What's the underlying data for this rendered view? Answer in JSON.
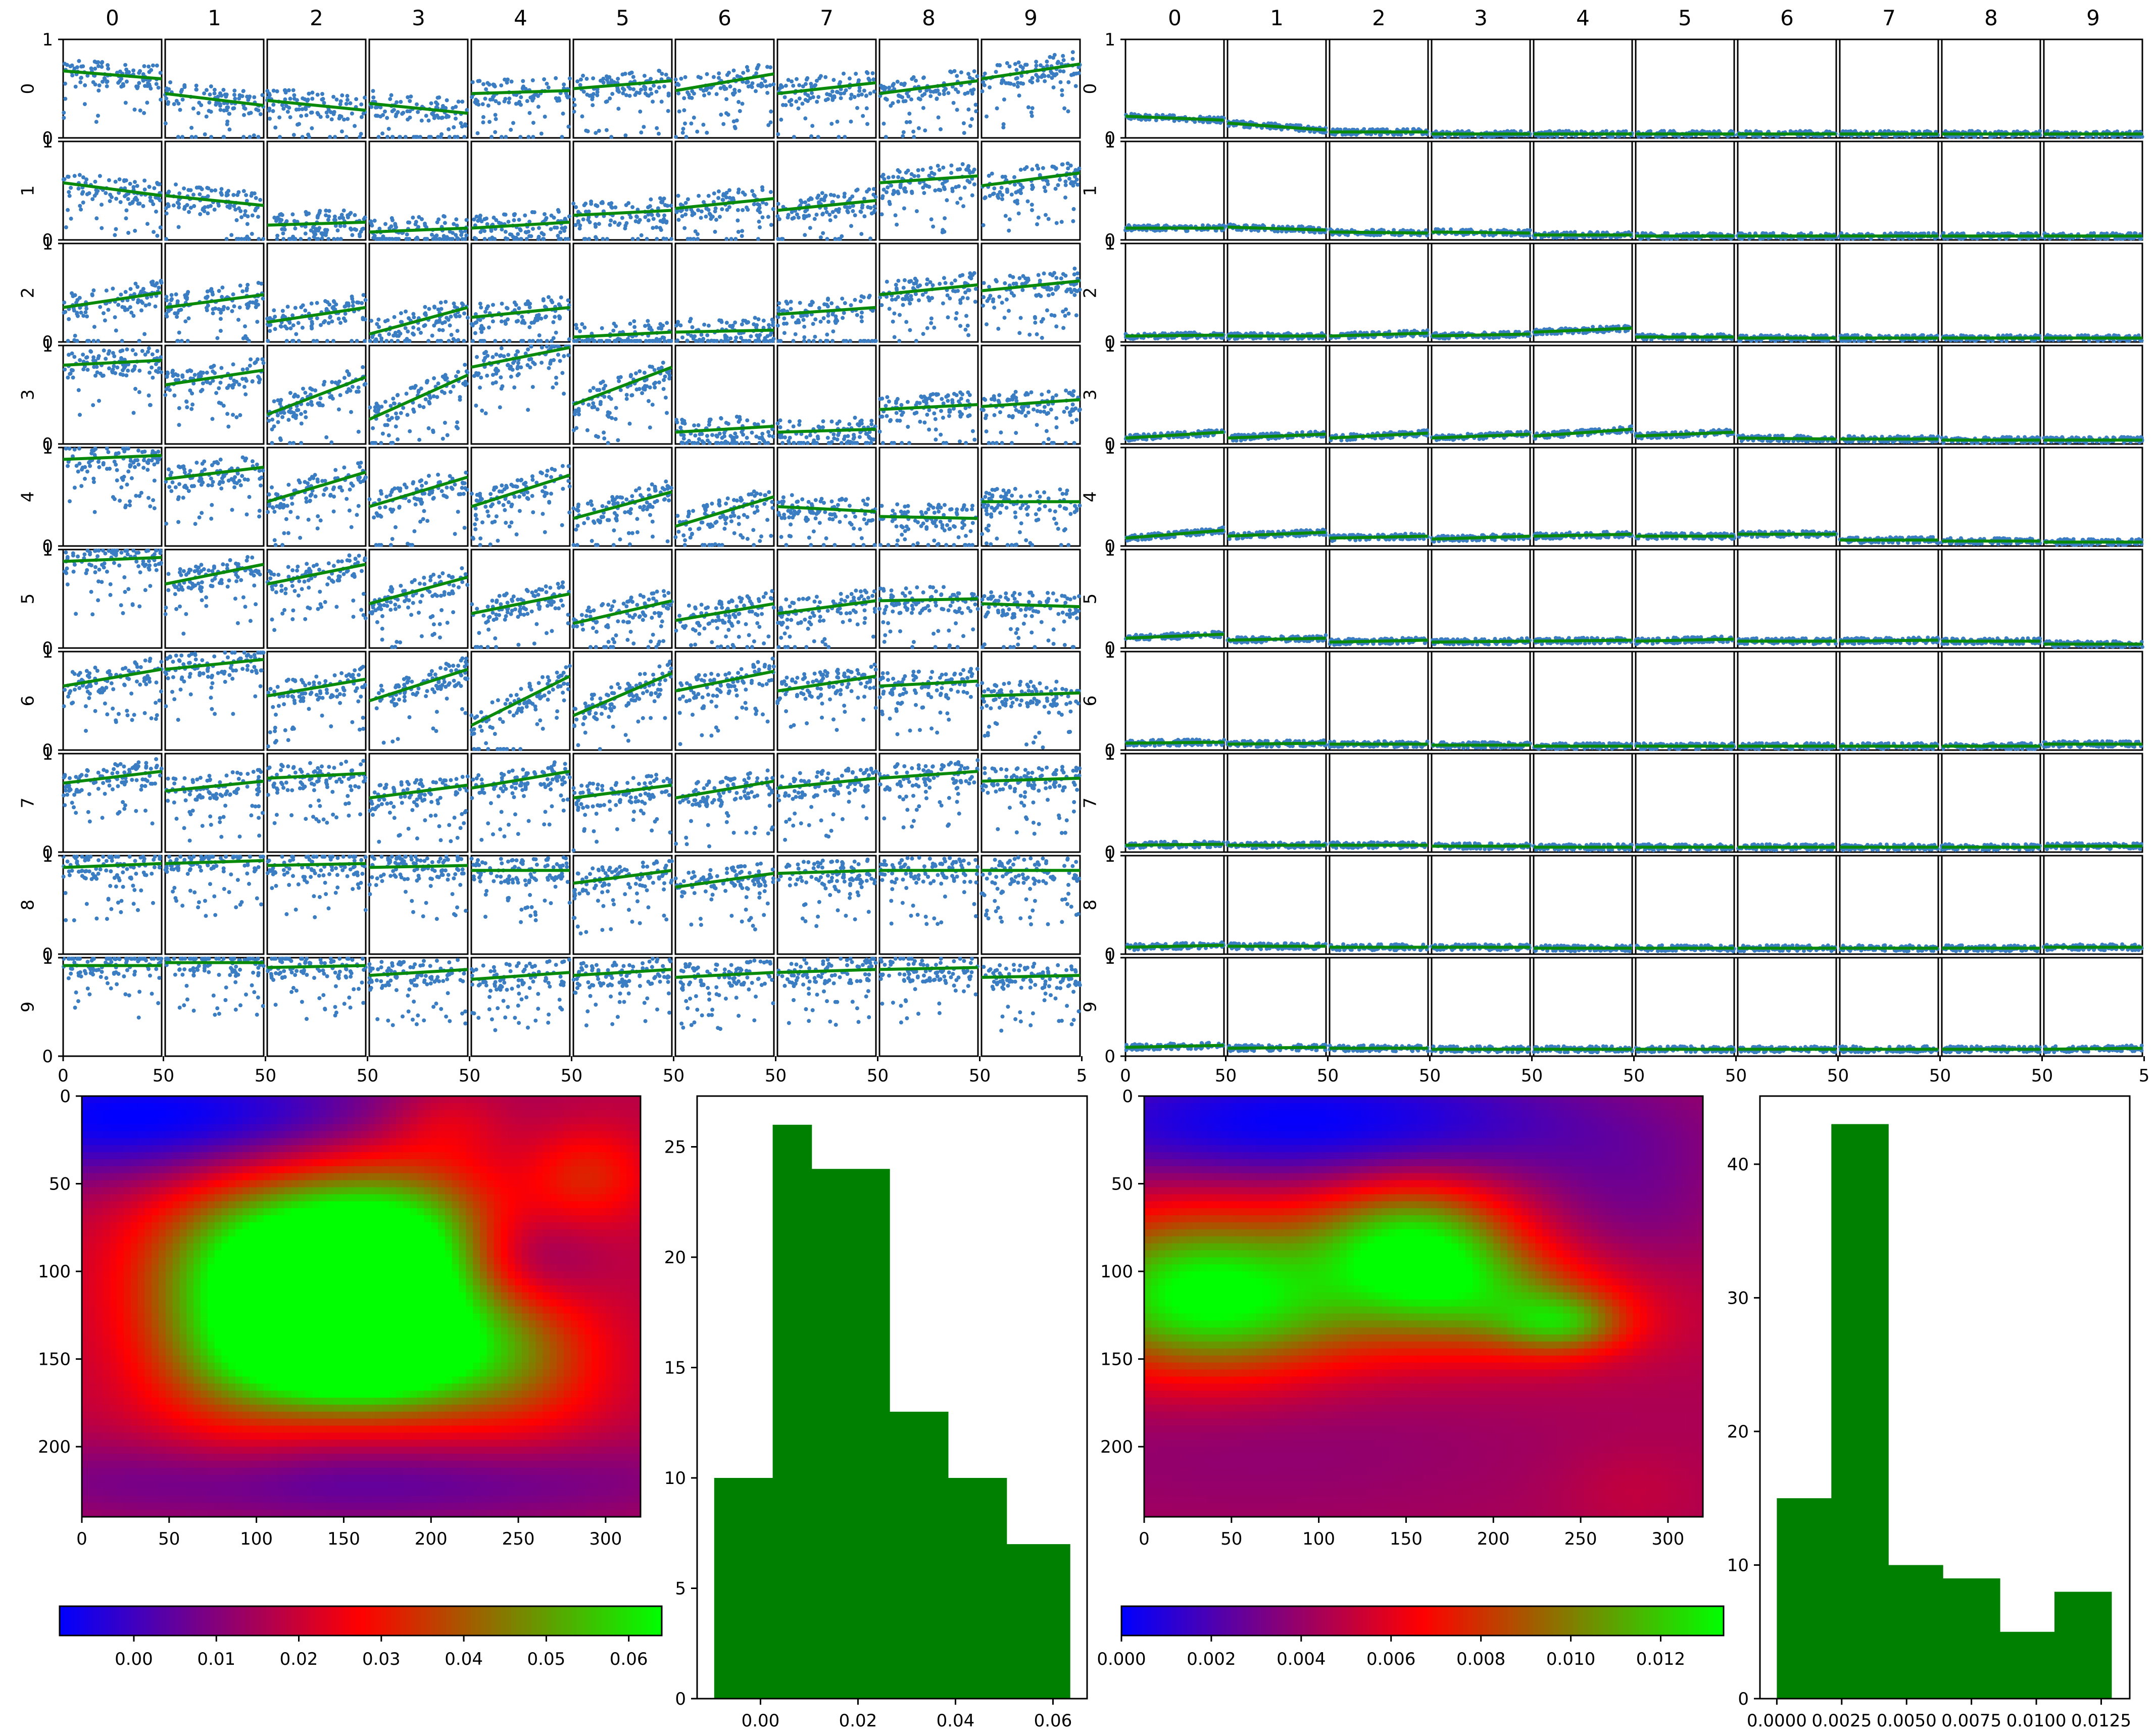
{
  "colors": {
    "scatter_point": "#3a7dc2",
    "fit_line": "#0a8a0a",
    "histogram_bar": "#008000",
    "colormap": [
      "#0000ff",
      "#ff0000",
      "#00ff00"
    ],
    "frame": "#000000"
  },
  "chart_data": [
    {
      "type": "scatter",
      "title": "",
      "xlabel": "",
      "ylabel": "",
      "col_labels": [
        "0",
        "1",
        "2",
        "3",
        "4",
        "5",
        "6",
        "7",
        "8",
        "9"
      ],
      "row_labels": [
        "0",
        "1",
        "2",
        "3",
        "4",
        "5",
        "6",
        "7",
        "8",
        "9"
      ],
      "x_tick_labels": [
        "0",
        "50",
        "50",
        "50",
        "50",
        "50",
        "50",
        "50",
        "50",
        "50",
        "5"
      ],
      "y_tick_labels": [
        "1",
        "0"
      ],
      "xlim": [
        0,
        50
      ],
      "ylim": [
        0,
        1
      ],
      "fit_lines": [
        [
          [
            0.68,
            0.6
          ],
          [
            0.45,
            0.33
          ],
          [
            0.38,
            0.28
          ],
          [
            0.35,
            0.25
          ],
          [
            0.45,
            0.48
          ],
          [
            0.5,
            0.58
          ],
          [
            0.48,
            0.65
          ],
          [
            0.45,
            0.56
          ],
          [
            0.45,
            0.58
          ],
          [
            0.6,
            0.75
          ]
        ],
        [
          [
            0.58,
            0.45
          ],
          [
            0.45,
            0.35
          ],
          [
            0.15,
            0.18
          ],
          [
            0.08,
            0.12
          ],
          [
            0.12,
            0.18
          ],
          [
            0.25,
            0.3
          ],
          [
            0.32,
            0.42
          ],
          [
            0.3,
            0.4
          ],
          [
            0.58,
            0.65
          ],
          [
            0.55,
            0.68
          ]
        ],
        [
          [
            0.35,
            0.5
          ],
          [
            0.35,
            0.48
          ],
          [
            0.2,
            0.35
          ],
          [
            0.08,
            0.35
          ],
          [
            0.25,
            0.35
          ],
          [
            0.05,
            0.1
          ],
          [
            0.1,
            0.12
          ],
          [
            0.28,
            0.35
          ],
          [
            0.48,
            0.58
          ],
          [
            0.52,
            0.62
          ]
        ],
        [
          [
            0.8,
            0.85
          ],
          [
            0.6,
            0.75
          ],
          [
            0.3,
            0.68
          ],
          [
            0.25,
            0.7
          ],
          [
            0.78,
            0.98
          ],
          [
            0.4,
            0.78
          ],
          [
            0.12,
            0.18
          ],
          [
            0.12,
            0.15
          ],
          [
            0.35,
            0.4
          ],
          [
            0.38,
            0.45
          ]
        ],
        [
          [
            0.88,
            0.92
          ],
          [
            0.68,
            0.8
          ],
          [
            0.45,
            0.75
          ],
          [
            0.4,
            0.7
          ],
          [
            0.4,
            0.72
          ],
          [
            0.28,
            0.55
          ],
          [
            0.2,
            0.5
          ],
          [
            0.4,
            0.35
          ],
          [
            0.3,
            0.28
          ],
          [
            0.45,
            0.45
          ]
        ],
        [
          [
            0.88,
            0.92
          ],
          [
            0.65,
            0.85
          ],
          [
            0.65,
            0.85
          ],
          [
            0.45,
            0.72
          ],
          [
            0.35,
            0.55
          ],
          [
            0.25,
            0.48
          ],
          [
            0.28,
            0.45
          ],
          [
            0.35,
            0.48
          ],
          [
            0.48,
            0.5
          ],
          [
            0.45,
            0.42
          ]
        ],
        [
          [
            0.65,
            0.82
          ],
          [
            0.82,
            0.92
          ],
          [
            0.55,
            0.72
          ],
          [
            0.5,
            0.82
          ],
          [
            0.25,
            0.75
          ],
          [
            0.35,
            0.78
          ],
          [
            0.6,
            0.8
          ],
          [
            0.6,
            0.75
          ],
          [
            0.65,
            0.7
          ],
          [
            0.55,
            0.58
          ]
        ],
        [
          [
            0.7,
            0.82
          ],
          [
            0.62,
            0.72
          ],
          [
            0.75,
            0.8
          ],
          [
            0.55,
            0.68
          ],
          [
            0.65,
            0.82
          ],
          [
            0.55,
            0.68
          ],
          [
            0.55,
            0.72
          ],
          [
            0.65,
            0.75
          ],
          [
            0.75,
            0.82
          ],
          [
            0.72,
            0.75
          ]
        ],
        [
          [
            0.88,
            0.92
          ],
          [
            0.92,
            0.95
          ],
          [
            0.9,
            0.92
          ],
          [
            0.88,
            0.9
          ],
          [
            0.85,
            0.85
          ],
          [
            0.72,
            0.85
          ],
          [
            0.68,
            0.82
          ],
          [
            0.82,
            0.85
          ],
          [
            0.85,
            0.85
          ],
          [
            0.85,
            0.85
          ]
        ],
        [
          [
            0.92,
            0.92
          ],
          [
            0.95,
            0.95
          ],
          [
            0.9,
            0.92
          ],
          [
            0.82,
            0.88
          ],
          [
            0.78,
            0.85
          ],
          [
            0.82,
            0.88
          ],
          [
            0.8,
            0.85
          ],
          [
            0.85,
            0.88
          ],
          [
            0.88,
            0.9
          ],
          [
            0.8,
            0.82
          ]
        ]
      ]
    },
    {
      "type": "scatter",
      "title": "",
      "xlabel": "",
      "ylabel": "",
      "col_labels": [
        "0",
        "1",
        "2",
        "3",
        "4",
        "5",
        "6",
        "7",
        "8",
        "9"
      ],
      "row_labels": [
        "0",
        "1",
        "2",
        "3",
        "4",
        "5",
        "6",
        "7",
        "8",
        "9"
      ],
      "x_tick_labels": [
        "0",
        "50",
        "50",
        "50",
        "50",
        "50",
        "50",
        "50",
        "50",
        "50",
        "5"
      ],
      "y_tick_labels": [
        "1",
        "0"
      ],
      "xlim": [
        0,
        50
      ],
      "ylim": [
        0,
        1
      ],
      "fit_lines": [
        [
          [
            0.22,
            0.18
          ],
          [
            0.15,
            0.08
          ],
          [
            0.06,
            0.06
          ],
          [
            0.04,
            0.04
          ],
          [
            0.04,
            0.04
          ],
          [
            0.04,
            0.04
          ],
          [
            0.04,
            0.04
          ],
          [
            0.04,
            0.04
          ],
          [
            0.04,
            0.04
          ],
          [
            0.04,
            0.04
          ]
        ],
        [
          [
            0.12,
            0.12
          ],
          [
            0.13,
            0.1
          ],
          [
            0.08,
            0.07
          ],
          [
            0.08,
            0.07
          ],
          [
            0.05,
            0.05
          ],
          [
            0.04,
            0.04
          ],
          [
            0.04,
            0.04
          ],
          [
            0.04,
            0.04
          ],
          [
            0.04,
            0.04
          ],
          [
            0.04,
            0.04
          ]
        ],
        [
          [
            0.06,
            0.07
          ],
          [
            0.06,
            0.06
          ],
          [
            0.06,
            0.09
          ],
          [
            0.06,
            0.08
          ],
          [
            0.1,
            0.14
          ],
          [
            0.05,
            0.05
          ],
          [
            0.04,
            0.04
          ],
          [
            0.04,
            0.04
          ],
          [
            0.04,
            0.04
          ],
          [
            0.04,
            0.04
          ]
        ],
        [
          [
            0.06,
            0.12
          ],
          [
            0.06,
            0.1
          ],
          [
            0.06,
            0.11
          ],
          [
            0.06,
            0.1
          ],
          [
            0.08,
            0.15
          ],
          [
            0.08,
            0.12
          ],
          [
            0.06,
            0.05
          ],
          [
            0.05,
            0.05
          ],
          [
            0.04,
            0.04
          ],
          [
            0.04,
            0.04
          ]
        ],
        [
          [
            0.08,
            0.16
          ],
          [
            0.1,
            0.14
          ],
          [
            0.08,
            0.1
          ],
          [
            0.07,
            0.1
          ],
          [
            0.1,
            0.12
          ],
          [
            0.1,
            0.1
          ],
          [
            0.12,
            0.12
          ],
          [
            0.06,
            0.06
          ],
          [
            0.05,
            0.05
          ],
          [
            0.04,
            0.04
          ]
        ],
        [
          [
            0.1,
            0.14
          ],
          [
            0.08,
            0.1
          ],
          [
            0.06,
            0.08
          ],
          [
            0.06,
            0.07
          ],
          [
            0.07,
            0.08
          ],
          [
            0.07,
            0.09
          ],
          [
            0.07,
            0.07
          ],
          [
            0.07,
            0.08
          ],
          [
            0.07,
            0.07
          ],
          [
            0.04,
            0.04
          ]
        ],
        [
          [
            0.07,
            0.08
          ],
          [
            0.06,
            0.07
          ],
          [
            0.06,
            0.06
          ],
          [
            0.05,
            0.05
          ],
          [
            0.04,
            0.04
          ],
          [
            0.04,
            0.04
          ],
          [
            0.04,
            0.04
          ],
          [
            0.04,
            0.04
          ],
          [
            0.04,
            0.04
          ],
          [
            0.06,
            0.06
          ]
        ],
        [
          [
            0.07,
            0.08
          ],
          [
            0.07,
            0.07
          ],
          [
            0.07,
            0.07
          ],
          [
            0.06,
            0.06
          ],
          [
            0.05,
            0.05
          ],
          [
            0.05,
            0.05
          ],
          [
            0.05,
            0.05
          ],
          [
            0.05,
            0.05
          ],
          [
            0.05,
            0.05
          ],
          [
            0.06,
            0.06
          ]
        ],
        [
          [
            0.07,
            0.09
          ],
          [
            0.08,
            0.08
          ],
          [
            0.07,
            0.07
          ],
          [
            0.07,
            0.07
          ],
          [
            0.06,
            0.06
          ],
          [
            0.06,
            0.06
          ],
          [
            0.06,
            0.06
          ],
          [
            0.06,
            0.06
          ],
          [
            0.06,
            0.06
          ],
          [
            0.07,
            0.07
          ]
        ],
        [
          [
            0.09,
            0.11
          ],
          [
            0.08,
            0.09
          ],
          [
            0.08,
            0.08
          ],
          [
            0.07,
            0.07
          ],
          [
            0.07,
            0.07
          ],
          [
            0.07,
            0.07
          ],
          [
            0.07,
            0.07
          ],
          [
            0.07,
            0.07
          ],
          [
            0.07,
            0.07
          ],
          [
            0.07,
            0.08
          ]
        ]
      ]
    },
    {
      "type": "heatmap",
      "title": "",
      "xlabel": "",
      "ylabel": "",
      "xlim": [
        0,
        320
      ],
      "ylim": [
        240,
        0
      ],
      "x_ticks": [
        0,
        50,
        100,
        150,
        200,
        250,
        300
      ],
      "y_ticks": [
        0,
        50,
        100,
        150,
        200
      ],
      "value_range": [
        -0.009,
        0.064
      ],
      "colorbar_ticks": [
        "0.00",
        "0.01",
        "0.02",
        "0.03",
        "0.04",
        "0.05",
        "0.06"
      ],
      "colorbar_values": [
        0.0,
        0.01,
        0.02,
        0.03,
        0.04,
        0.05,
        0.06
      ],
      "baseline": 0.018,
      "blobs": [
        {
          "x": 140,
          "y": 95,
          "sx": 55,
          "sy": 35,
          "v": 0.058
        },
        {
          "x": 155,
          "y": 150,
          "sx": 45,
          "sy": 20,
          "v": 0.05
        },
        {
          "x": 185,
          "y": 110,
          "sx": 40,
          "sy": 45,
          "v": 0.04
        },
        {
          "x": 90,
          "y": 130,
          "sx": 40,
          "sy": 45,
          "v": 0.032
        },
        {
          "x": 250,
          "y": 150,
          "sx": 35,
          "sy": 30,
          "v": 0.025
        },
        {
          "x": 290,
          "y": 45,
          "sx": 25,
          "sy": 20,
          "v": 0.02
        },
        {
          "x": 210,
          "y": 15,
          "sx": 25,
          "sy": 15,
          "v": 0.015
        },
        {
          "x": 40,
          "y": 12,
          "sx": 110,
          "sy": 25,
          "v": -0.028
        },
        {
          "x": 250,
          "y": 95,
          "sx": 30,
          "sy": 20,
          "v": -0.015
        },
        {
          "x": 150,
          "y": 220,
          "sx": 150,
          "sy": 18,
          "v": -0.015
        }
      ]
    },
    {
      "type": "bar",
      "title": "",
      "xlabel": "",
      "ylabel": "",
      "bin_edges": [
        -0.0095,
        0.0025,
        0.0105,
        0.0265,
        0.0385,
        0.0505,
        0.0635
      ],
      "values": [
        10,
        26,
        24,
        13,
        10,
        7
      ],
      "x_ticks": [
        "0.00",
        "0.02",
        "0.04",
        "0.06"
      ],
      "x_tick_values": [
        0.0,
        0.02,
        0.04,
        0.06
      ],
      "xlim": [
        -0.013,
        0.067
      ],
      "y_ticks": [
        "0",
        "5",
        "10",
        "15",
        "20",
        "25"
      ],
      "y_tick_values": [
        0,
        5,
        10,
        15,
        20,
        25
      ],
      "ylim": [
        0,
        27.3
      ]
    },
    {
      "type": "heatmap",
      "title": "",
      "xlabel": "",
      "ylabel": "",
      "xlim": [
        0,
        320
      ],
      "ylim": [
        240,
        0
      ],
      "x_ticks": [
        0,
        50,
        100,
        150,
        200,
        250,
        300
      ],
      "y_ticks": [
        0,
        50,
        100,
        150,
        200
      ],
      "value_range": [
        0.0,
        0.0134
      ],
      "colorbar_ticks": [
        "0.000",
        "0.002",
        "0.004",
        "0.006",
        "0.008",
        "0.010",
        "0.012"
      ],
      "colorbar_values": [
        0.0,
        0.002,
        0.004,
        0.006,
        0.008,
        0.01,
        0.012
      ],
      "baseline": 0.0045,
      "blobs": [
        {
          "x": 35,
          "y": 110,
          "sx": 55,
          "sy": 32,
          "v": 0.0095
        },
        {
          "x": 155,
          "y": 85,
          "sx": 40,
          "sy": 25,
          "v": 0.0095
        },
        {
          "x": 200,
          "y": 115,
          "sx": 45,
          "sy": 20,
          "v": 0.005
        },
        {
          "x": 240,
          "y": 130,
          "sx": 25,
          "sy": 12,
          "v": 0.006
        },
        {
          "x": 120,
          "y": 125,
          "sx": 120,
          "sy": 25,
          "v": 0.0035
        },
        {
          "x": 280,
          "y": 225,
          "sx": 30,
          "sy": 18,
          "v": 0.002
        },
        {
          "x": 90,
          "y": 15,
          "sx": 120,
          "sy": 25,
          "v": -0.0045
        },
        {
          "x": 280,
          "y": 60,
          "sx": 40,
          "sy": 30,
          "v": -0.0012
        },
        {
          "x": 60,
          "y": 200,
          "sx": 120,
          "sy": 30,
          "v": -0.0008
        }
      ]
    },
    {
      "type": "bar",
      "title": "",
      "xlabel": "",
      "ylabel": "",
      "bin_edges": [
        0.0,
        0.0021,
        0.0043,
        0.0064,
        0.0086,
        0.0107,
        0.0129
      ],
      "values": [
        15,
        43,
        10,
        9,
        5,
        8
      ],
      "x_ticks": [
        "0.0000",
        "0.0025",
        "0.0050",
        "0.0075",
        "0.0100",
        "0.0125"
      ],
      "x_tick_values": [
        0.0,
        0.0025,
        0.005,
        0.0075,
        0.01,
        0.0125
      ],
      "xlim": [
        -0.00065,
        0.0136
      ],
      "y_ticks": [
        "0",
        "10",
        "20",
        "30",
        "40"
      ],
      "y_tick_values": [
        0,
        10,
        20,
        30,
        40
      ],
      "ylim": [
        0,
        45.1
      ]
    }
  ]
}
